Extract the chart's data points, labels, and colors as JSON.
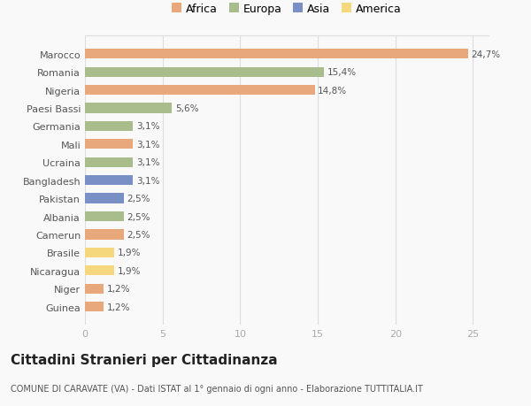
{
  "categories": [
    "Guinea",
    "Niger",
    "Nicaragua",
    "Brasile",
    "Camerun",
    "Albania",
    "Pakistan",
    "Bangladesh",
    "Ucraina",
    "Mali",
    "Germania",
    "Paesi Bassi",
    "Nigeria",
    "Romania",
    "Marocco"
  ],
  "values": [
    1.2,
    1.2,
    1.9,
    1.9,
    2.5,
    2.5,
    2.5,
    3.1,
    3.1,
    3.1,
    3.1,
    5.6,
    14.8,
    15.4,
    24.7
  ],
  "labels": [
    "1,2%",
    "1,2%",
    "1,9%",
    "1,9%",
    "2,5%",
    "2,5%",
    "2,5%",
    "3,1%",
    "3,1%",
    "3,1%",
    "3,1%",
    "5,6%",
    "14,8%",
    "15,4%",
    "24,7%"
  ],
  "colors": [
    "#e8a87c",
    "#e8a87c",
    "#f5d87e",
    "#f5d87e",
    "#e8a87c",
    "#a8bc8c",
    "#7b8fc7",
    "#7b8fc7",
    "#a8bc8c",
    "#e8a87c",
    "#a8bc8c",
    "#a8bc8c",
    "#e8a87c",
    "#a8bc8c",
    "#e8a87c"
  ],
  "legend_labels": [
    "Africa",
    "Europa",
    "Asia",
    "America"
  ],
  "legend_colors": [
    "#e8a87c",
    "#a8bc8c",
    "#7b8fc7",
    "#f5d87e"
  ],
  "title": "Cittadini Stranieri per Cittadinanza",
  "subtitle": "COMUNE DI CARAVATE (VA) - Dati ISTAT al 1° gennaio di ogni anno - Elaborazione TUTTITALIA.IT",
  "xlim": [
    0,
    26
  ],
  "xticks": [
    0,
    5,
    10,
    15,
    20,
    25
  ],
  "background_color": "#f9f9f9",
  "bar_height": 0.55,
  "label_fontsize": 7.5,
  "ytick_fontsize": 8,
  "xtick_fontsize": 8,
  "title_fontsize": 11,
  "subtitle_fontsize": 7
}
